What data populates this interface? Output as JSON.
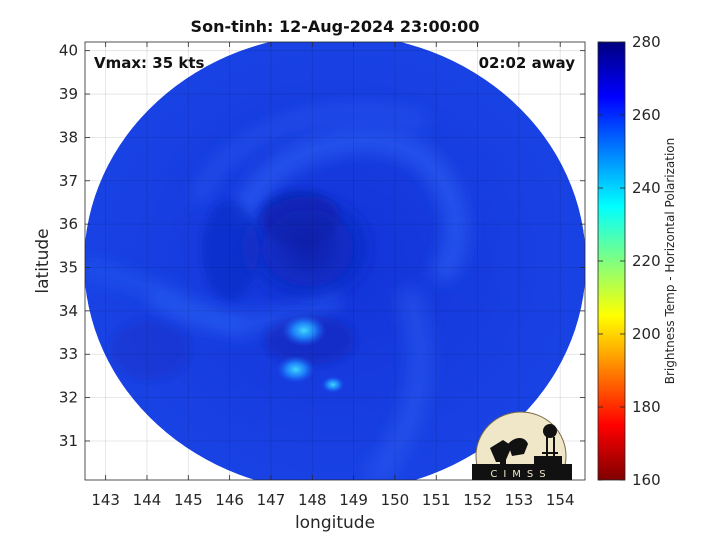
{
  "title": "Son-tinh: 12-Aug-2024 23:00:00",
  "vmax_label": "Vmax: 35 kts",
  "time_away_label": "02:02 away",
  "xlabel": "longitude",
  "ylabel": "latitude",
  "colorbar_label": "Brightness Temp - Horizontal Polarization",
  "logo_text": "CIMSS",
  "map": {
    "xlim": [
      142.5,
      154.6
    ],
    "ylim": [
      30.1,
      40.2
    ],
    "x_ticks": [
      143,
      144,
      145,
      146,
      147,
      148,
      149,
      150,
      151,
      152,
      153,
      154
    ],
    "y_ticks": [
      31,
      32,
      33,
      34,
      35,
      36,
      37,
      38,
      39,
      40
    ],
    "grid": true,
    "swath_center": {
      "lon": 148.55,
      "lat": 35.1
    },
    "storm_center": {
      "lon": 148.2,
      "lat": 35.5
    },
    "cold_spots": [
      {
        "lon": 147.8,
        "lat": 33.55,
        "tb": 245
      },
      {
        "lon": 147.6,
        "lat": 32.65,
        "tb": 248
      },
      {
        "lon": 148.5,
        "lat": 32.3,
        "tb": 256
      }
    ]
  },
  "colorbar": {
    "min": 160,
    "max": 280,
    "ticks": [
      160,
      180,
      200,
      220,
      240,
      260,
      280
    ],
    "colormap": "jet",
    "colors": [
      "#800000",
      "#ff0000",
      "#ff8000",
      "#ffff00",
      "#80ff80",
      "#00ffff",
      "#0080ff",
      "#0000ff",
      "#000080"
    ]
  }
}
